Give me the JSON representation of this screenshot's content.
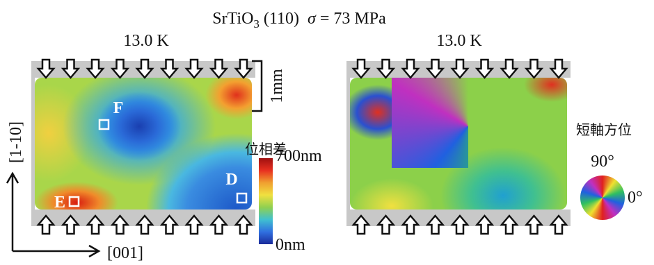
{
  "title": {
    "formula": "SrTiO",
    "subscript": "3",
    "plane": "(110)",
    "sigma": "σ",
    "stress": "= 73 MPa"
  },
  "left_panel": {
    "temperature": "13.0 K",
    "points": [
      "F",
      "E",
      "D"
    ],
    "scale": "1mm"
  },
  "right_panel": {
    "temperature": "13.0 K"
  },
  "colorbar": {
    "title": "位相差",
    "max": "700nm",
    "min": "0nm"
  },
  "wheel": {
    "title": "短軸方位",
    "top": "90°",
    "right": "0°"
  },
  "axes": {
    "vertical": "[1-10]",
    "horizontal": "[001]"
  }
}
